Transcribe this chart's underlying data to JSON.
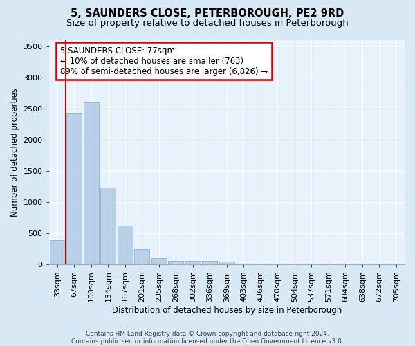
{
  "title": "5, SAUNDERS CLOSE, PETERBOROUGH, PE2 9RD",
  "subtitle": "Size of property relative to detached houses in Peterborough",
  "xlabel": "Distribution of detached houses by size in Peterborough",
  "ylabel": "Number of detached properties",
  "footer_line1": "Contains HM Land Registry data © Crown copyright and database right 2024.",
  "footer_line2": "Contains public sector information licensed under the Open Government Licence v3.0.",
  "categories": [
    "33sqm",
    "67sqm",
    "100sqm",
    "134sqm",
    "167sqm",
    "201sqm",
    "235sqm",
    "268sqm",
    "302sqm",
    "336sqm",
    "369sqm",
    "403sqm",
    "436sqm",
    "470sqm",
    "504sqm",
    "537sqm",
    "571sqm",
    "604sqm",
    "638sqm",
    "672sqm",
    "705sqm"
  ],
  "bar_values": [
    390,
    2420,
    2600,
    1230,
    620,
    250,
    100,
    65,
    60,
    55,
    50,
    0,
    0,
    0,
    0,
    0,
    0,
    0,
    0,
    0,
    0
  ],
  "bar_color": "#b8d0e8",
  "bar_edge_color": "#8ab4d4",
  "annotation_text": "5 SAUNDERS CLOSE: 77sqm\n← 10% of detached houses are smaller (763)\n89% of semi-detached houses are larger (6,826) →",
  "annotation_box_color": "#ffffff",
  "annotation_box_edge_color": "#cc0000",
  "red_line_color": "#cc0000",
  "ylim": [
    0,
    3600
  ],
  "yticks": [
    0,
    500,
    1000,
    1500,
    2000,
    2500,
    3000,
    3500
  ],
  "bg_color": "#d8e8f4",
  "plot_bg_color": "#e8f2fc",
  "grid_color": "#ffffff",
  "title_fontsize": 10.5,
  "subtitle_fontsize": 9.5,
  "xlabel_fontsize": 8.5,
  "ylabel_fontsize": 8.5,
  "tick_fontsize": 8,
  "annotation_fontsize": 8.5,
  "footer_fontsize": 6.5
}
